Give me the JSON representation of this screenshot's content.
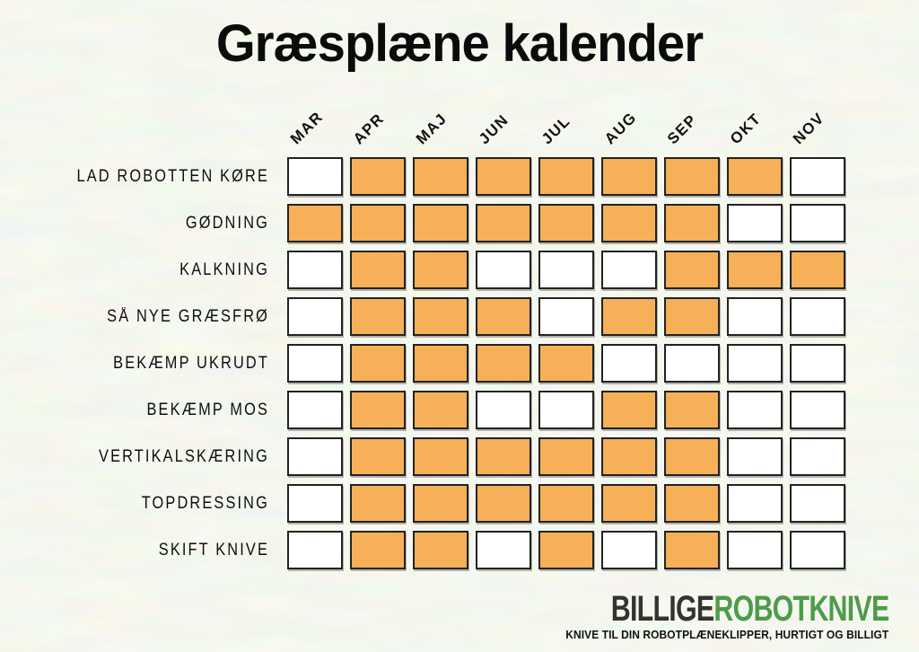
{
  "title": "Græsplæne kalender",
  "calendar": {
    "months": [
      "MAR",
      "APR",
      "MAJ",
      "JUN",
      "JUL",
      "AUG",
      "SEP",
      "OKT",
      "NOV"
    ],
    "activities": [
      {
        "label": "LAD ROBOTTEN KØRE",
        "cells": [
          0,
          1,
          1,
          1,
          1,
          1,
          1,
          1,
          0
        ]
      },
      {
        "label": "GØDNING",
        "cells": [
          1,
          1,
          1,
          1,
          1,
          1,
          1,
          0,
          0
        ]
      },
      {
        "label": "KALKNING",
        "cells": [
          0,
          1,
          1,
          0,
          0,
          0,
          1,
          1,
          1
        ]
      },
      {
        "label": "SÅ NYE GRÆSFRØ",
        "cells": [
          0,
          1,
          1,
          1,
          0,
          1,
          1,
          0,
          0
        ]
      },
      {
        "label": "BEKÆMP UKRUDT",
        "cells": [
          0,
          1,
          1,
          1,
          1,
          0,
          0,
          0,
          0
        ]
      },
      {
        "label": "BEKÆMP MOS",
        "cells": [
          0,
          1,
          1,
          0,
          0,
          1,
          1,
          0,
          0
        ]
      },
      {
        "label": "VERTIKALSKÆRING",
        "cells": [
          0,
          1,
          1,
          1,
          1,
          1,
          1,
          0,
          0
        ]
      },
      {
        "label": "TOPDRESSING",
        "cells": [
          0,
          1,
          1,
          1,
          1,
          1,
          1,
          0,
          0
        ]
      },
      {
        "label": "SKIFT KNIVE",
        "cells": [
          0,
          1,
          1,
          0,
          1,
          0,
          1,
          0,
          0
        ]
      }
    ]
  },
  "logo": {
    "part1": "BILLIGE",
    "part2": "ROBOTKNIVE",
    "tagline": "KNIVE TIL DIN ROBOTPLÆNEKLIPPER, HURTIGT OG BILLIGT"
  },
  "colors": {
    "filled_cell": "#F6B057",
    "empty_cell": "#FFFFFF",
    "cell_border": "#222222",
    "background": "#E1E8DA",
    "text": "#0E0E0E",
    "logo_dark": "#333333",
    "logo_green": "#4E9B4B"
  },
  "chart_data": {
    "type": "heatmap",
    "title": "Græsplæne kalender",
    "x_categories": [
      "MAR",
      "APR",
      "MAJ",
      "JUN",
      "JUL",
      "AUG",
      "SEP",
      "OKT",
      "NOV"
    ],
    "y_categories": [
      "LAD ROBOTTEN KØRE",
      "GØDNING",
      "KALKNING",
      "SÅ NYE GRÆSFRØ",
      "BEKÆMP UKRUDT",
      "BEKÆMP MOS",
      "VERTIKALSKÆRING",
      "TOPDRESSING",
      "SKIFT KNIVE"
    ],
    "matrix": [
      [
        0,
        1,
        1,
        1,
        1,
        1,
        1,
        1,
        0
      ],
      [
        1,
        1,
        1,
        1,
        1,
        1,
        1,
        0,
        0
      ],
      [
        0,
        1,
        1,
        0,
        0,
        0,
        1,
        1,
        1
      ],
      [
        0,
        1,
        1,
        1,
        0,
        1,
        1,
        0,
        0
      ],
      [
        0,
        1,
        1,
        1,
        1,
        0,
        0,
        0,
        0
      ],
      [
        0,
        1,
        1,
        0,
        0,
        1,
        1,
        0,
        0
      ],
      [
        0,
        1,
        1,
        1,
        1,
        1,
        1,
        0,
        0
      ],
      [
        0,
        1,
        1,
        1,
        1,
        1,
        1,
        0,
        0
      ],
      [
        0,
        1,
        1,
        0,
        1,
        0,
        1,
        0,
        0
      ]
    ],
    "value_meaning": {
      "1": "anbefalet i måneden (orange celle)",
      "0": "ikke anbefalet (hvid celle)"
    },
    "filled_color": "#F6B057",
    "empty_color": "#FFFFFF",
    "grid": "cells with dark borders, gap between cells",
    "legend_position": "none"
  }
}
